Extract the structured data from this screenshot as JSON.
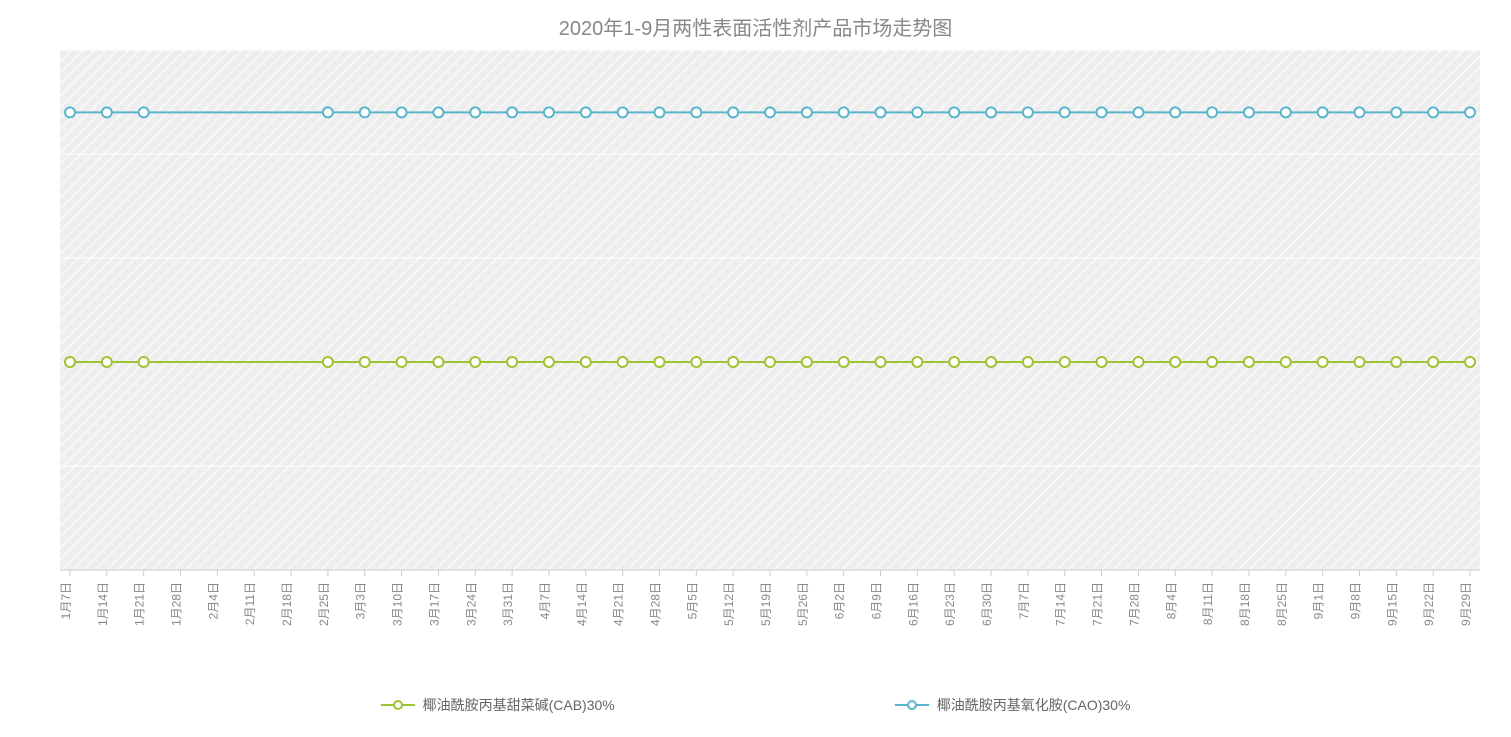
{
  "chart": {
    "type": "line",
    "title": "2020年1-9月两性表面活性剂产品市场走势图",
    "title_fontsize": 20,
    "title_color": "#888888",
    "background_color": "#ffffff",
    "plot_background_color": "#eeeeee",
    "plot_pattern": "diagonal-hatch",
    "grid_color": "#ffffff",
    "grid_line_width": 1,
    "axis_line_color": "#cccccc",
    "tick_label_color": "#888888",
    "tick_label_fontsize": 12,
    "x_tick_rotation": -90,
    "y_axis_visible": false,
    "ylim": [
      0,
      100
    ],
    "ytick_step": 20,
    "categories": [
      "1月7日",
      "1月14日",
      "1月21日",
      "1月28日",
      "2月4日",
      "2月11日",
      "2月18日",
      "2月25日",
      "3月3日",
      "3月10日",
      "3月17日",
      "3月24日",
      "3月31日",
      "4月7日",
      "4月14日",
      "4月21日",
      "4月28日",
      "5月5日",
      "5月12日",
      "5月19日",
      "5月26日",
      "6月2日",
      "6月9日",
      "6月16日",
      "6月23日",
      "6月30日",
      "7月7日",
      "7月14日",
      "7月21日",
      "7月28日",
      "8月4日",
      "8月11日",
      "8月18日",
      "8月25日",
      "9月1日",
      "9月8日",
      "9月15日",
      "9月22日",
      "9月29日"
    ],
    "missing_markers_indices": [
      3,
      4,
      5,
      6
    ],
    "series": [
      {
        "name": "椰油酰胺丙基甜菜碱(CAB)30%",
        "color": "#a0c334",
        "line_width": 2,
        "marker": "circle",
        "marker_size": 10,
        "marker_fill": "#ffffff",
        "marker_stroke_width": 2,
        "values": [
          40,
          40,
          40,
          40,
          40,
          40,
          40,
          40,
          40,
          40,
          40,
          40,
          40,
          40,
          40,
          40,
          40,
          40,
          40,
          40,
          40,
          40,
          40,
          40,
          40,
          40,
          40,
          40,
          40,
          40,
          40,
          40,
          40,
          40,
          40,
          40,
          40,
          40,
          40
        ]
      },
      {
        "name": "椰油酰胺丙基氧化胺(CAO)30%",
        "color": "#5ab5cc",
        "line_width": 2,
        "marker": "circle",
        "marker_size": 10,
        "marker_fill": "#ffffff",
        "marker_stroke_width": 2,
        "values": [
          88,
          88,
          88,
          88,
          88,
          88,
          88,
          88,
          88,
          88,
          88,
          88,
          88,
          88,
          88,
          88,
          88,
          88,
          88,
          88,
          88,
          88,
          88,
          88,
          88,
          88,
          88,
          88,
          88,
          88,
          88,
          88,
          88,
          88,
          88,
          88,
          88,
          88,
          88
        ]
      }
    ],
    "legend_position": "bottom",
    "legend_fontsize": 14,
    "legend_color": "#666666"
  }
}
